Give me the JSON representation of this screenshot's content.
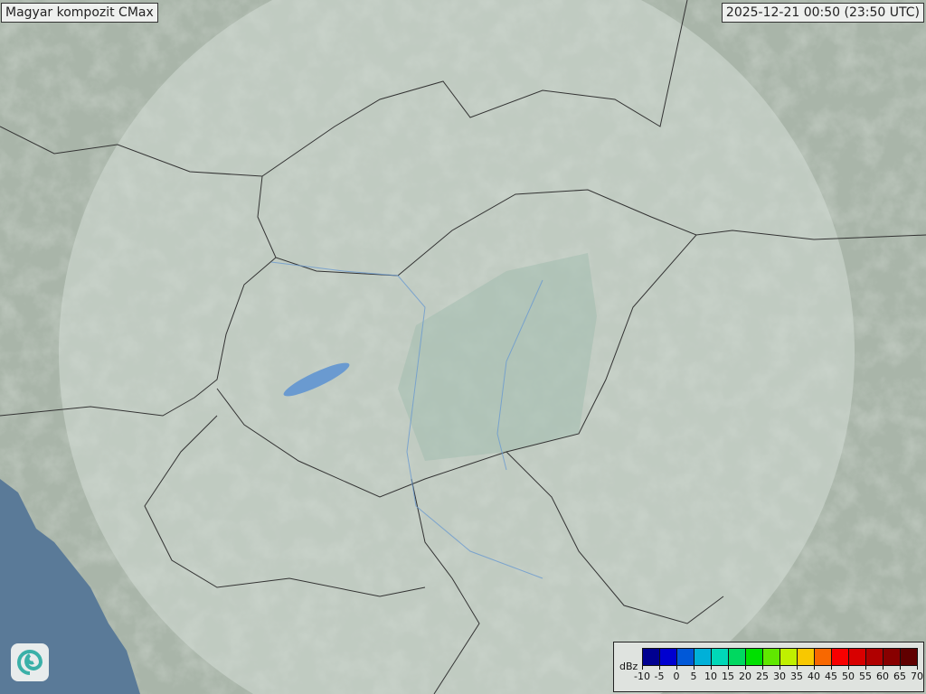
{
  "title": "Magyar kompozit  CMax",
  "timestamp": "2025-12-21 00:50 (23:50 UTC)",
  "legend": {
    "unit": "dBz",
    "ticks": [
      "-10",
      "-5",
      "0",
      "5",
      "10",
      "15",
      "20",
      "25",
      "30",
      "35",
      "40",
      "45",
      "50",
      "55",
      "60",
      "65",
      "70"
    ],
    "colors": [
      "#000090",
      "#0000d0",
      "#0058d8",
      "#00b0d8",
      "#00d8b8",
      "#00d860",
      "#00e000",
      "#60e800",
      "#c0f000",
      "#f8c800",
      "#f86800",
      "#f80000",
      "#d80000",
      "#b00000",
      "#880000",
      "#600000"
    ]
  },
  "map": {
    "land_color": "#a9b5a9",
    "coverage_color": "#c9d4cc",
    "sea_color": "#5a7a98",
    "border_color": "#333333",
    "river_color": "#6a9ad0",
    "radar_echoes": "none"
  },
  "logo": {
    "icon": "swirl-logo-icon"
  }
}
